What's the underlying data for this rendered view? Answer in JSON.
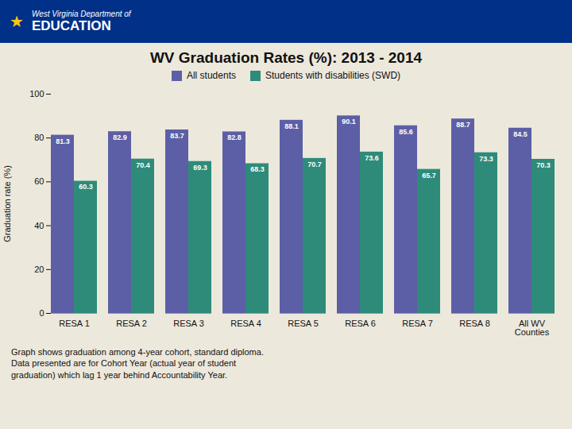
{
  "chart_data": {
    "type": "bar",
    "title": "WV Graduation Rates (%): 2013 - 2014",
    "ylabel": "Graduation rate (%)",
    "categories": [
      "RESA 1",
      "RESA 2",
      "RESA 3",
      "RESA 4",
      "RESA 5",
      "RESA 6",
      "RESA 7",
      "RESA 8",
      "All WV\nCounties"
    ],
    "series": [
      {
        "name": "All students",
        "color": "#5c5fa5",
        "values": [
          81.3,
          82.9,
          83.7,
          82.8,
          88.1,
          90.1,
          85.6,
          88.7,
          84.5
        ]
      },
      {
        "name": "Students with disabilities (SWD)",
        "color": "#2e8b7a",
        "values": [
          60.3,
          70.4,
          69.3,
          68.3,
          70.7,
          73.6,
          65.7,
          73.3,
          70.3
        ]
      }
    ],
    "ylim": [
      0,
      100
    ],
    "yticks": [
      0,
      20,
      40,
      60,
      80,
      100
    ],
    "grid": false,
    "legend": "top",
    "data_labels": true,
    "annotations": [
      "★",
      "West Virginia  Department of",
      "EDUCATION",
      "Graph shows graduation among 4-year cohort, standard diploma.\nData presented are for Cohort Year (actual year of student\ngraduation) which lag 1 year behind Accountability Year."
    ]
  }
}
